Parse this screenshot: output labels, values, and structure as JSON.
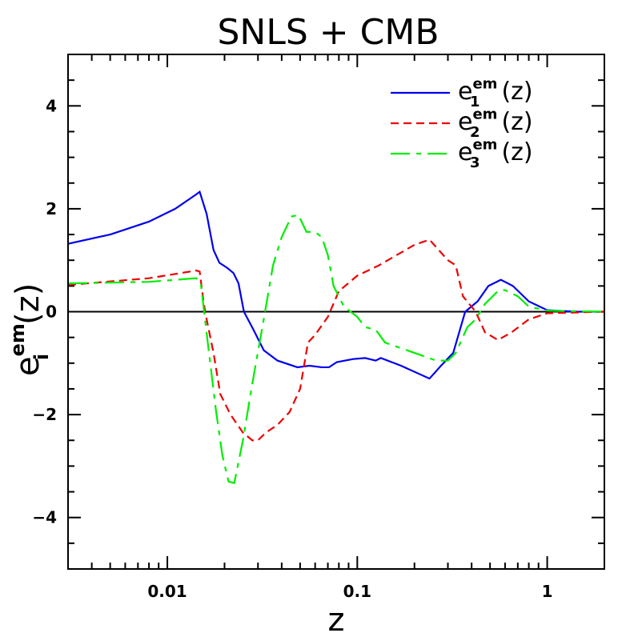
{
  "chart_data": {
    "type": "line",
    "title": "SNLS + CMB",
    "x_label": "z",
    "y_label": {
      "base": "e",
      "sub": "i",
      "sup": "em",
      "rest": "(z)"
    },
    "xscale": "log",
    "xlim": [
      0.003,
      2
    ],
    "ylim": [
      -5,
      5
    ],
    "xticks": [
      0.01,
      0.1,
      1
    ],
    "yticks": [
      4,
      2,
      0,
      {
        "value": -2,
        "label": "−2"
      },
      {
        "value": -4,
        "label": "−4"
      }
    ],
    "xminorticks": [
      0.004,
      0.005,
      0.006,
      0.007,
      0.008,
      0.009,
      0.02,
      0.03,
      0.04,
      0.05,
      0.06,
      0.07,
      0.08,
      0.09,
      0.2,
      0.3,
      0.4,
      0.5,
      0.6,
      0.7,
      0.8,
      0.9,
      2
    ],
    "yminorticks": [
      -4.5,
      -3.5,
      -3,
      -2.5,
      -1.5,
      -1,
      -0.5,
      0.5,
      1,
      1.5,
      2.5,
      3,
      3.5,
      4.5
    ],
    "hline": 0,
    "legend": "upper right",
    "series": [
      {
        "name": {
          "base": "e",
          "sub": "1",
          "sup": "em",
          "rest": "(z)"
        },
        "color": "#0000ee",
        "dash": "solid",
        "x": [
          0.003,
          0.005,
          0.008,
          0.011,
          0.0142,
          0.0148,
          0.0161,
          0.0175,
          0.0188,
          0.0207,
          0.0223,
          0.0237,
          0.0253,
          0.0284,
          0.0322,
          0.038,
          0.0484,
          0.056,
          0.065,
          0.071,
          0.078,
          0.095,
          0.11,
          0.125,
          0.133,
          0.17,
          0.24,
          0.276,
          0.32,
          0.37,
          0.43,
          0.49,
          0.57,
          0.66,
          0.8,
          1.0,
          1.43,
          2
        ],
        "values": [
          1.32,
          1.5,
          1.75,
          2.0,
          2.28,
          2.33,
          1.9,
          1.2,
          0.95,
          0.85,
          0.75,
          0.55,
          0.0,
          -0.35,
          -0.75,
          -0.95,
          -1.08,
          -1.05,
          -1.08,
          -1.08,
          -0.98,
          -0.92,
          -0.9,
          -0.95,
          -0.9,
          -1.05,
          -1.3,
          -1.05,
          -0.8,
          0.0,
          0.2,
          0.5,
          0.62,
          0.5,
          0.2,
          0.03,
          0.0,
          0.0
        ]
      },
      {
        "name": {
          "base": "e",
          "sub": "2",
          "sup": "em",
          "rest": "(z)"
        },
        "color": "#ee0000",
        "dash": "short",
        "x": [
          0.003,
          0.008,
          0.0142,
          0.0148,
          0.0155,
          0.016,
          0.0175,
          0.019,
          0.0215,
          0.025,
          0.028,
          0.03,
          0.033,
          0.038,
          0.044,
          0.05,
          0.055,
          0.06,
          0.07,
          0.08,
          0.1,
          0.13,
          0.2,
          0.24,
          0.3,
          0.33,
          0.36,
          0.42,
          0.47,
          0.55,
          0.65,
          0.8,
          1.0,
          2
        ],
        "values": [
          0.52,
          0.65,
          0.8,
          0.78,
          0.2,
          -0.1,
          -0.8,
          -1.6,
          -2.0,
          -2.35,
          -2.5,
          -2.5,
          -2.35,
          -2.2,
          -1.95,
          -1.5,
          -0.6,
          -0.45,
          -0.1,
          0.4,
          0.7,
          0.9,
          1.3,
          1.4,
          1.0,
          0.9,
          0.3,
          0.0,
          -0.4,
          -0.55,
          -0.4,
          -0.15,
          -0.03,
          0.0
        ]
      },
      {
        "name": {
          "base": "e",
          "sub": "3",
          "sup": "em",
          "rest": "(z)"
        },
        "color": "#00ee00",
        "dash": "dashdot",
        "x": [
          0.003,
          0.008,
          0.0142,
          0.015,
          0.0162,
          0.018,
          0.0195,
          0.021,
          0.0225,
          0.025,
          0.028,
          0.032,
          0.036,
          0.04,
          0.045,
          0.049,
          0.054,
          0.06,
          0.065,
          0.07,
          0.075,
          0.085,
          0.1,
          0.11,
          0.125,
          0.14,
          0.2,
          0.26,
          0.3,
          0.33,
          0.38,
          0.42,
          0.47,
          0.55,
          0.6,
          0.7,
          0.8,
          1.0,
          2
        ],
        "values": [
          0.55,
          0.58,
          0.65,
          0.55,
          -0.5,
          -1.9,
          -2.8,
          -3.3,
          -3.33,
          -2.5,
          -1.4,
          -0.2,
          0.9,
          1.45,
          1.85,
          1.88,
          1.55,
          1.55,
          1.45,
          1.1,
          0.5,
          0.1,
          -0.1,
          -0.3,
          -0.35,
          -0.6,
          -0.8,
          -0.95,
          -0.95,
          -0.8,
          -0.3,
          -0.15,
          0.15,
          0.4,
          0.42,
          0.3,
          0.1,
          0.02,
          0.0
        ]
      }
    ]
  }
}
